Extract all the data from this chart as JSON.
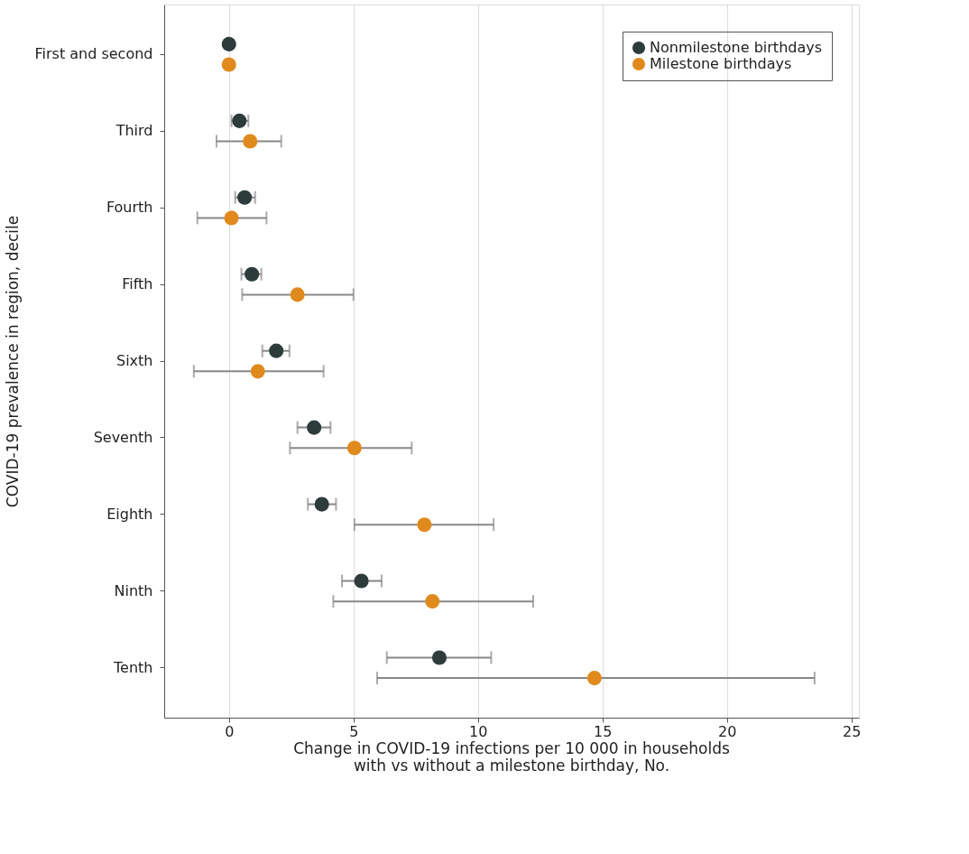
{
  "chart_data": {
    "type": "scatter",
    "orientation": "horizontal",
    "xlabel": "Change in COVID-19 infections per 10 000 in households with vs without a milestone birthday, No.",
    "ylabel": "COVID-19 prevalence in region, decile",
    "categories": [
      "First and second",
      "Third",
      "Fourth",
      "Fifth",
      "Sixth",
      "Seventh",
      "Eighth",
      "Ninth",
      "Tenth"
    ],
    "series": [
      {
        "name": "Nonmilestone birthdays",
        "color": "#2d3b3b",
        "values": [
          0,
          0.42,
          0.63,
          0.92,
          1.9,
          3.42,
          3.73,
          5.32,
          8.45
        ],
        "errors": [
          null,
          [
            0.1,
            0.78
          ],
          [
            0.25,
            1.05
          ],
          [
            0.5,
            1.3
          ],
          [
            1.34,
            2.43
          ],
          [
            2.75,
            4.08
          ],
          [
            3.17,
            4.3
          ],
          [
            4.54,
            6.13
          ],
          [
            6.34,
            10.53
          ]
        ]
      },
      {
        "name": "Milestone birthdays",
        "color": "#e08a1e",
        "values": [
          0,
          0.85,
          0.1,
          2.75,
          1.16,
          5.04,
          7.85,
          8.17,
          14.68
        ],
        "errors": [
          null,
          [
            -0.5,
            2.1
          ],
          [
            -1.27,
            1.51
          ],
          [
            0.53,
            5.0
          ],
          [
            -1.41,
            3.8
          ],
          [
            2.45,
            7.34
          ],
          [
            5.04,
            10.63
          ],
          [
            4.19,
            12.22
          ],
          [
            5.95,
            23.52
          ]
        ]
      }
    ],
    "xlim": [
      -2.6,
      25.3
    ],
    "xticks": [
      0,
      5,
      10,
      15,
      20,
      25
    ],
    "grid": "x",
    "legend": "top right",
    "marker": "circle"
  }
}
